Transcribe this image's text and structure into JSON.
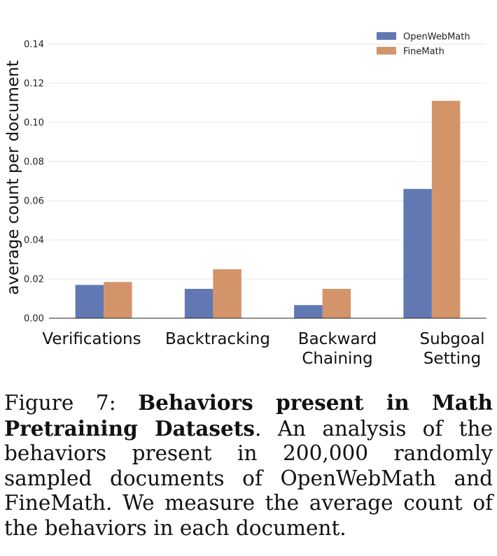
{
  "chart_data": {
    "type": "bar",
    "categories": [
      "Verifications",
      "Backtracking",
      "Backward Chaining",
      "Subgoal Setting"
    ],
    "category_lines": [
      [
        "Verifications"
      ],
      [
        "Backtracking"
      ],
      [
        "Backward",
        "Chaining"
      ],
      [
        "Subgoal",
        "Setting"
      ]
    ],
    "series": [
      {
        "name": "OpenWebMath",
        "color": "#6178b2",
        "values": [
          0.017,
          0.015,
          0.0067,
          0.066
        ]
      },
      {
        "name": "FineMath",
        "color": "#d4946a",
        "values": [
          0.0185,
          0.025,
          0.015,
          0.111
        ]
      }
    ],
    "ylabel": "average count per document",
    "xlabel": "",
    "ylim": [
      0,
      0.14
    ],
    "yticks": [
      "0.00",
      "0.02",
      "0.04",
      "0.06",
      "0.08",
      "0.10",
      "0.12",
      "0.14"
    ],
    "grid": true,
    "legend": "top-right"
  },
  "caption": {
    "label": "Figure 7: ",
    "bold": "Behaviors present in Math Pretraining Datasets",
    "text": ". An analysis of the behaviors present in 200,000 randomly sampled documents of OpenWebMath and FineMath. We measure the average count of the behaviors in each document."
  }
}
